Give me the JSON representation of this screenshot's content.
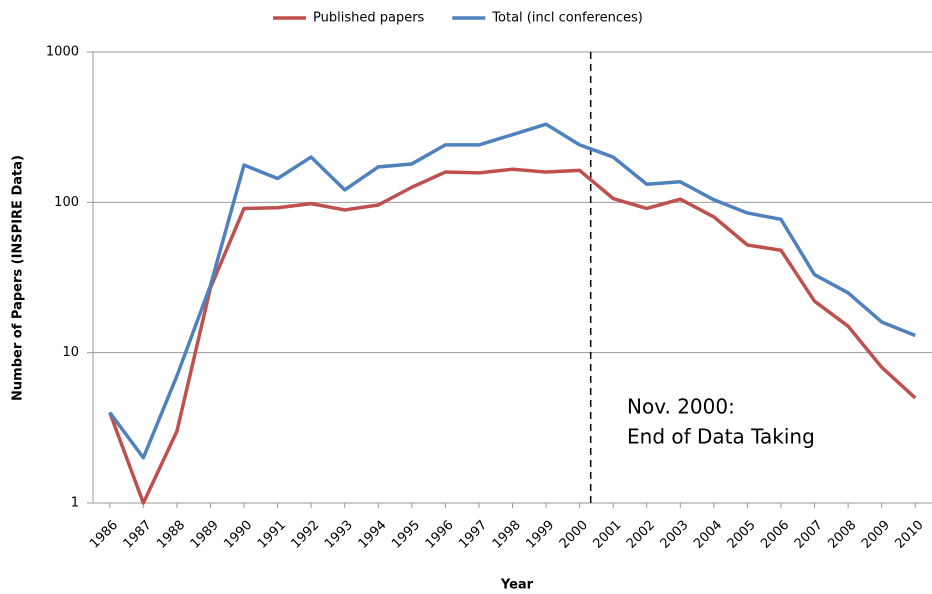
{
  "chart_data": {
    "type": "line",
    "categories": [
      "1986",
      "1987",
      "1988",
      "1989",
      "1990",
      "1991",
      "1992",
      "1993",
      "1994",
      "1995",
      "1996",
      "1997",
      "1998",
      "1999",
      "2000",
      "2001",
      "2002",
      "2003",
      "2004",
      "2005",
      "2006",
      "2007",
      "2008",
      "2009",
      "2010"
    ],
    "series": [
      {
        "name": "Published papers",
        "color": "#c0504d",
        "values": [
          4,
          1,
          3,
          27,
          91,
          92,
          98,
          89,
          96,
          126,
          159,
          157,
          166,
          159,
          163,
          106,
          91,
          105,
          80,
          52,
          48,
          22,
          15,
          8,
          5
        ]
      },
      {
        "name": "Total (incl conferences)",
        "color": "#4f81bd",
        "values": [
          4,
          2,
          7,
          28,
          177,
          144,
          200,
          121,
          172,
          180,
          241,
          241,
          282,
          331,
          241,
          200,
          132,
          137,
          104,
          85,
          77,
          33,
          25,
          16,
          13
        ]
      }
    ],
    "ylim": [
      1,
      1000
    ],
    "yticks": [
      1,
      10,
      100,
      1000
    ],
    "log_y": true,
    "grid": true,
    "xlabel": "Year",
    "ylabel": "Number of Papers (INSPIRE Data)",
    "annotation": [
      "Nov. 2000:",
      "End of Data Taking"
    ],
    "legend": "top"
  }
}
